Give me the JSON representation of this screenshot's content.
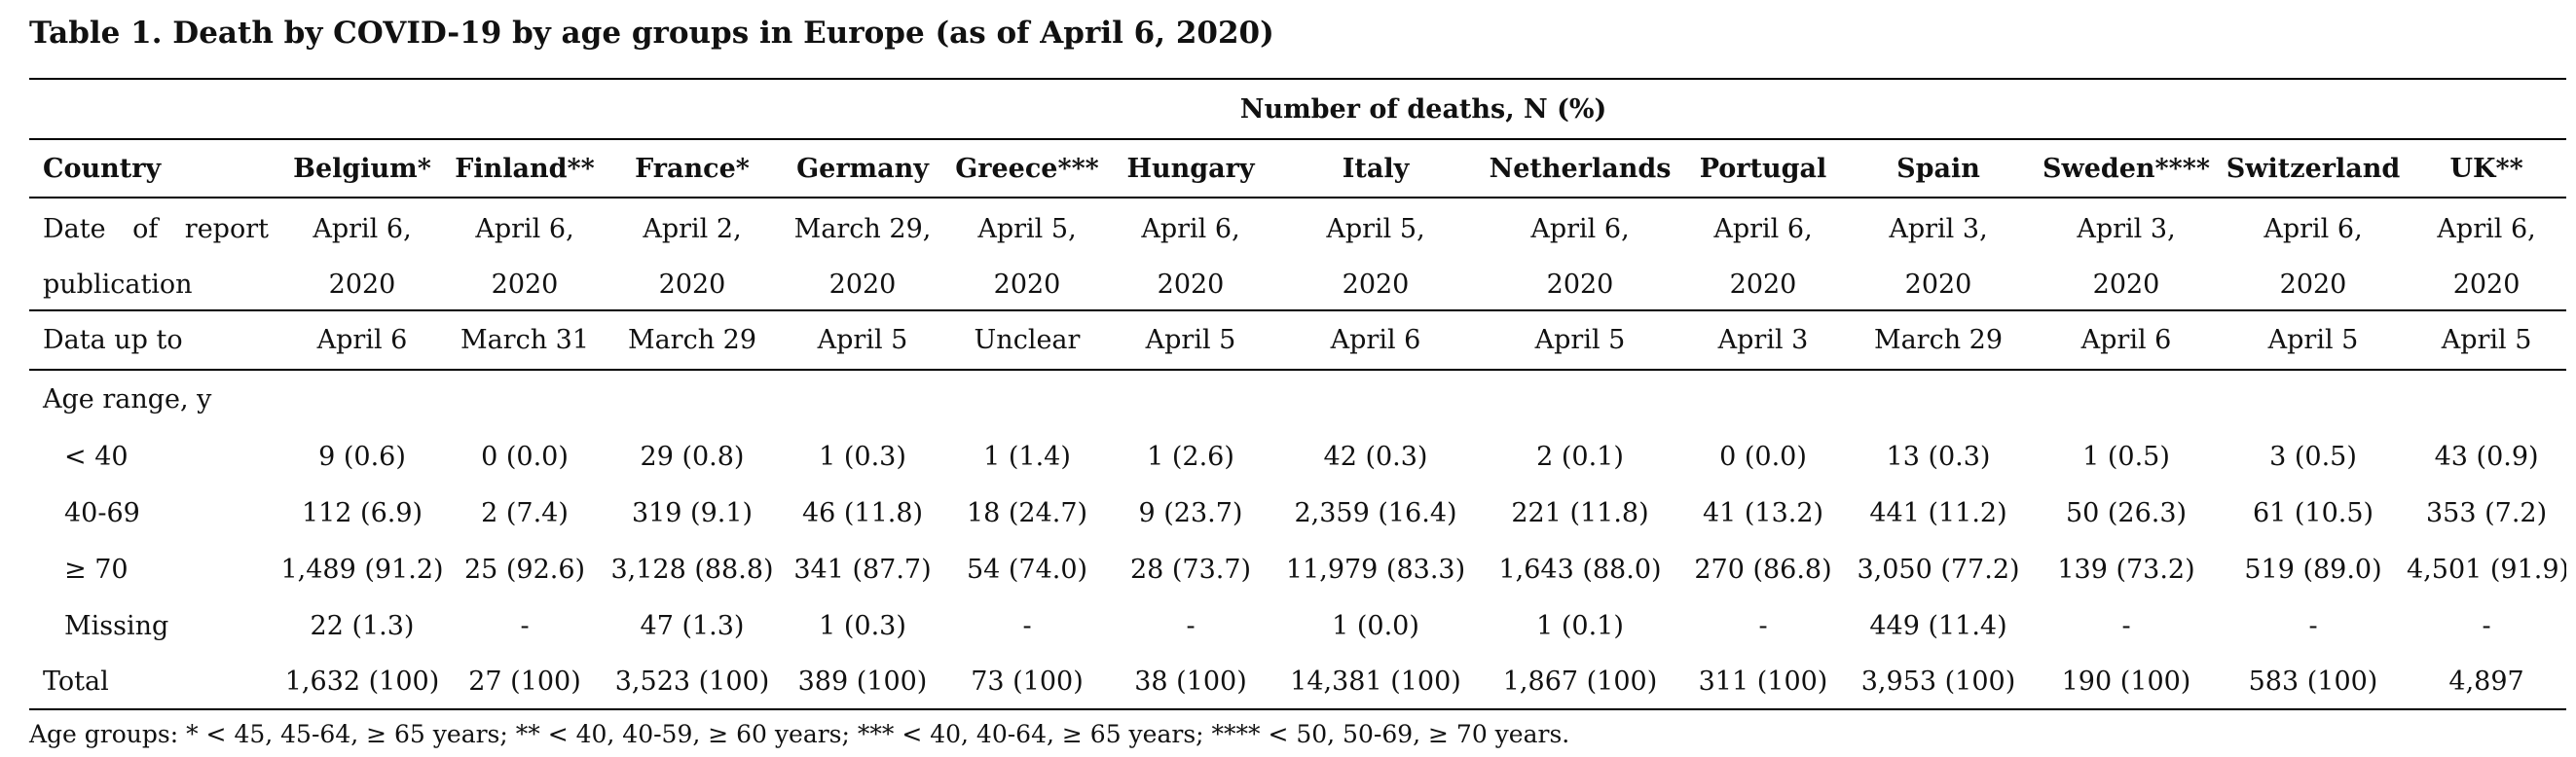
{
  "title": "Table 1. Death by COVID-19 by age groups in Europe (as of April 6, 2020)",
  "group_header": "Number of deaths, N (%)",
  "column_headers": [
    "Country",
    "Belgium*",
    "Finland**",
    "France*",
    "Germany",
    "Greece***",
    "Hungary",
    "Italy",
    "Netherlands",
    "Portugal",
    "Spain",
    "Sweden****",
    "Switzerland",
    "UK**"
  ],
  "report_date_label_line1_left": "Date",
  "report_date_label_line1_mid": "of",
  "report_date_label_line1_right": "report",
  "report_date_label_line2": "publication",
  "report_dates_line1": [
    "April 6,",
    "April 6,",
    "April 2,",
    "March 29,",
    "April 5,",
    "April 6,",
    "April 5,",
    "April 6,",
    "April 6,",
    "April 3,",
    "April 3,",
    "April 6,",
    "April 6,"
  ],
  "report_dates_line2": [
    "2020",
    "2020",
    "2020",
    "2020",
    "2020",
    "2020",
    "2020",
    "2020",
    "2020",
    "2020",
    "2020",
    "2020",
    "2020"
  ],
  "data_up_to": {
    "label": "Data up to",
    "values": [
      "April 6",
      "March 31",
      "March 29",
      "April 5",
      "Unclear",
      "April 5",
      "April 6",
      "April 5",
      "April 3",
      "March 29",
      "April 6",
      "April 5",
      "April 5"
    ]
  },
  "age_range_label": "Age range, y",
  "age_rows": [
    {
      "label": "< 40",
      "values": [
        "9 (0.6)",
        "0 (0.0)",
        "29 (0.8)",
        "1 (0.3)",
        "1 (1.4)",
        "1 (2.6)",
        "42 (0.3)",
        "2 (0.1)",
        "0 (0.0)",
        "13 (0.3)",
        "1 (0.5)",
        "3 (0.5)",
        "43 (0.9)"
      ]
    },
    {
      "label": "40-69",
      "values": [
        "112 (6.9)",
        "2 (7.4)",
        "319 (9.1)",
        "46 (11.8)",
        "18 (24.7)",
        "9 (23.7)",
        "2,359 (16.4)",
        "221 (11.8)",
        "41 (13.2)",
        "441 (11.2)",
        "50 (26.3)",
        "61 (10.5)",
        "353 (7.2)"
      ]
    },
    {
      "label": "≥ 70",
      "values": [
        "1,489 (91.2)",
        "25 (92.6)",
        "3,128 (88.8)",
        "341 (87.7)",
        "54 (74.0)",
        "28 (73.7)",
        "11,979 (83.3)",
        "1,643 (88.0)",
        "270 (86.8)",
        "3,050 (77.2)",
        "139 (73.2)",
        "519 (89.0)",
        "4,501 (91.9)"
      ]
    },
    {
      "label": "Missing",
      "values": [
        "22 (1.3)",
        "-",
        "47 (1.3)",
        "1 (0.3)",
        "-",
        "-",
        "1 (0.0)",
        "1 (0.1)",
        "-",
        "449 (11.4)",
        "-",
        "-",
        "-"
      ]
    }
  ],
  "total": {
    "label": "Total",
    "values": [
      "1,632 (100)",
      "27 (100)",
      "3,523 (100)",
      "389 (100)",
      "73 (100)",
      "38 (100)",
      "14,381 (100)",
      "1,867 (100)",
      "311 (100)",
      "3,953 (100)",
      "190 (100)",
      "583 (100)",
      "4,897"
    ]
  },
  "footnote": "Age groups: * < 45, 45-64, ≥ 65 years; ** < 40, 40-59, ≥ 60 years; *** < 40, 40-64, ≥ 65 years; **** < 50, 50-69, ≥ 70 years."
}
